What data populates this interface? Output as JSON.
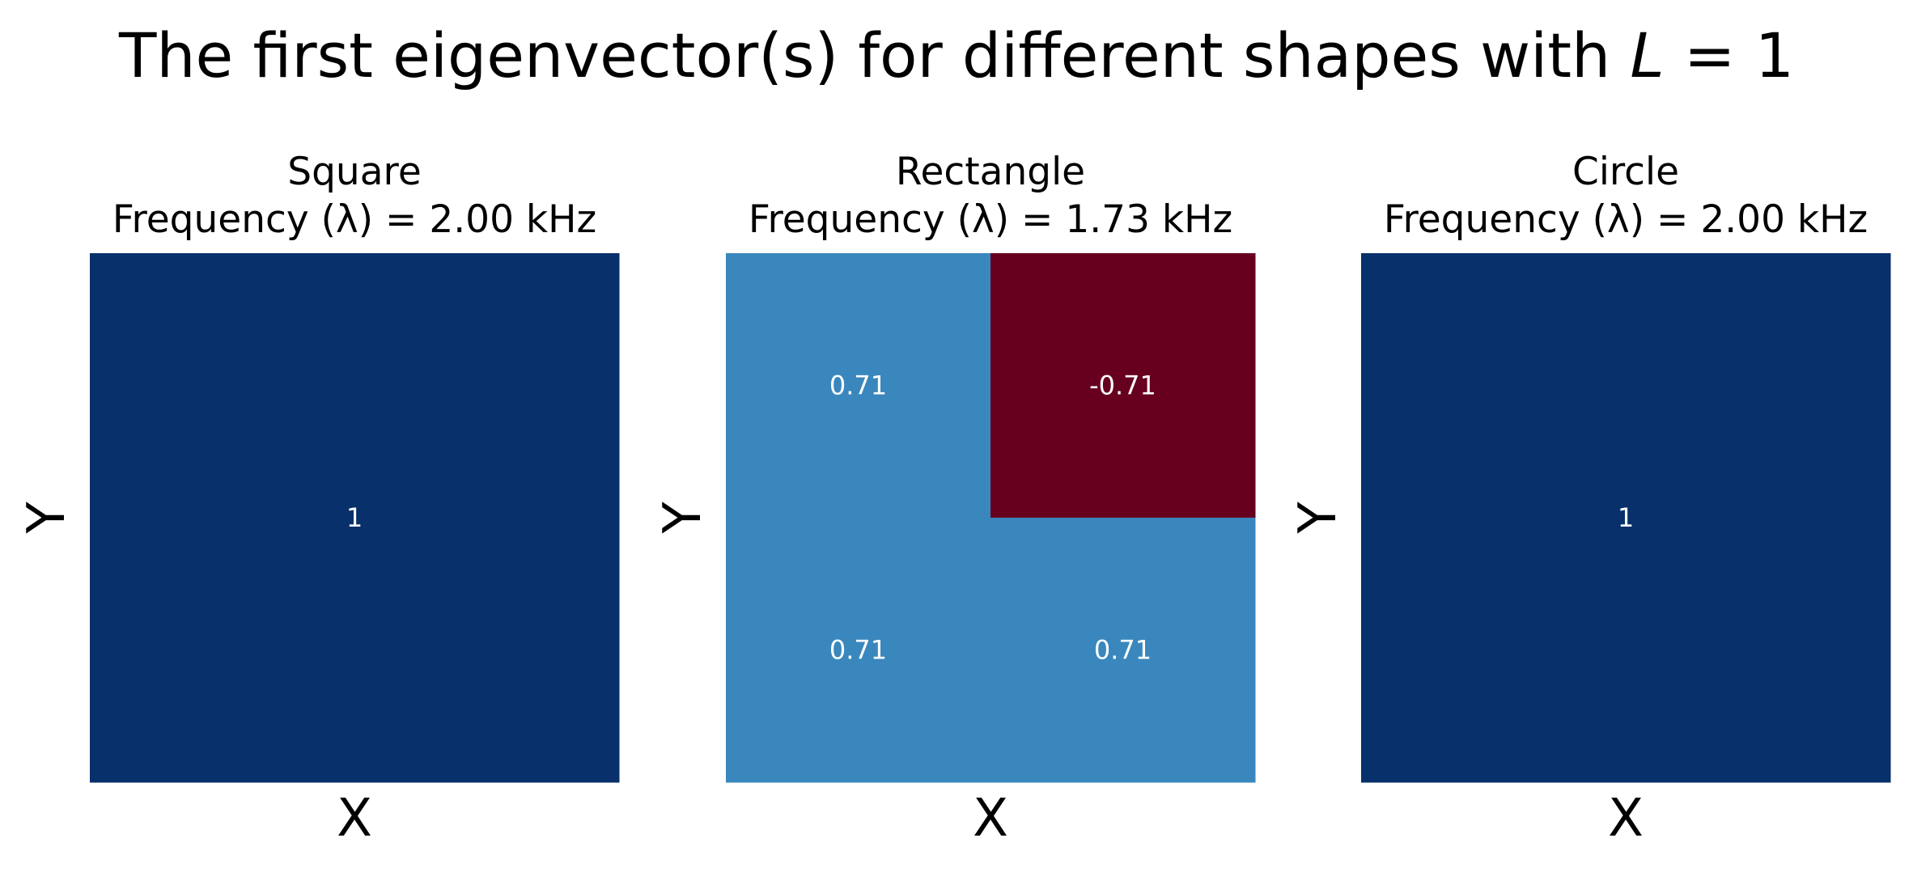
{
  "figure": {
    "suptitle_prefix": "The first eigenvector(s) for different shapes with ",
    "suptitle_var": "L",
    "suptitle_suffix": " = 1"
  },
  "chart_data": [
    {
      "type": "heatmap",
      "title": "Square",
      "subtitle": "Frequency (λ) = 2.00 kHz",
      "xlabel": "X",
      "ylabel": "Y",
      "rows": 1,
      "cols": 1,
      "cells": [
        {
          "row": 0,
          "col": 0,
          "value": 1,
          "label": "1",
          "color": "#08306b"
        }
      ]
    },
    {
      "type": "heatmap",
      "title": "Rectangle",
      "subtitle": "Frequency (λ) = 1.73 kHz",
      "xlabel": "X",
      "ylabel": "Y",
      "rows": 2,
      "cols": 2,
      "cells": [
        {
          "row": 0,
          "col": 0,
          "value": 0.71,
          "label": "0.71",
          "color": "#3a87bd"
        },
        {
          "row": 0,
          "col": 1,
          "value": -0.71,
          "label": "-0.71",
          "color": "#67001f"
        },
        {
          "row": 1,
          "col": 0,
          "value": 0.71,
          "label": "0.71",
          "color": "#3a87bd"
        },
        {
          "row": 1,
          "col": 1,
          "value": 0.71,
          "label": "0.71",
          "color": "#3a87bd"
        }
      ]
    },
    {
      "type": "heatmap",
      "title": "Circle",
      "subtitle": "Frequency (λ) = 2.00 kHz",
      "xlabel": "X",
      "ylabel": "Y",
      "rows": 1,
      "cols": 1,
      "cells": [
        {
          "row": 0,
          "col": 0,
          "value": 1,
          "label": "1",
          "color": "#08306b"
        }
      ]
    }
  ]
}
